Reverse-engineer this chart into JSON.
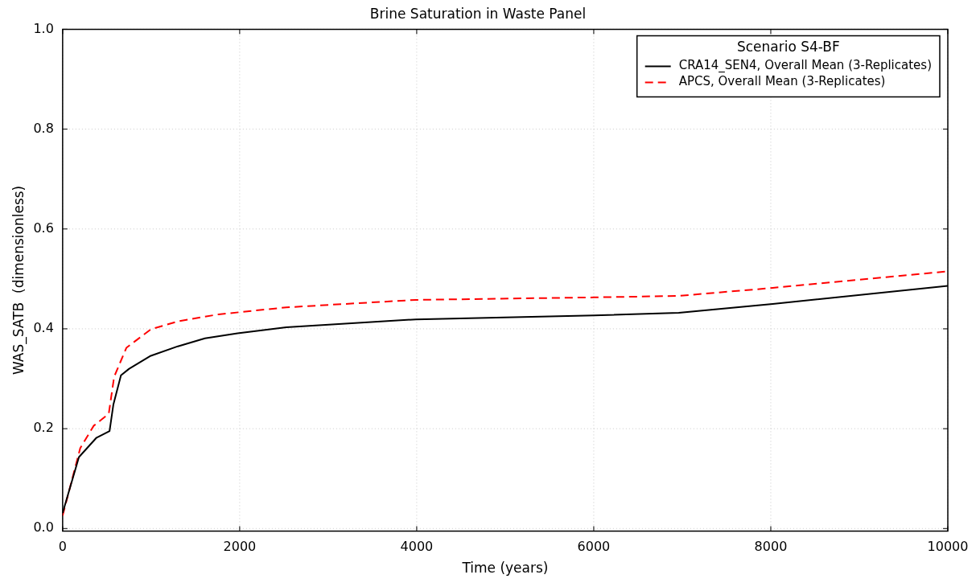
{
  "chart_data": {
    "type": "line",
    "title": "Brine Saturation in Waste Panel",
    "xlabel": "Time (years)",
    "ylabel": "WAS_SATB  (dimensionless)",
    "legend_title": "Scenario S4-BF",
    "legend": "top right",
    "grid": true,
    "xlim": [
      0,
      10000
    ],
    "xticks": [
      0,
      2000,
      4000,
      6000,
      8000,
      10000
    ],
    "ylim": [
      -0.005,
      1.0
    ],
    "yticks": [
      {
        "value": 0,
        "label": "0.0"
      },
      {
        "value": 0.2,
        "label": "0.2"
      },
      {
        "value": 0.4,
        "label": "0.4"
      },
      {
        "value": 0.6,
        "label": "0.6"
      },
      {
        "value": 0.8,
        "label": "0.8"
      },
      {
        "value": 1.0,
        "label": "1.0"
      }
    ],
    "series": [
      {
        "name": "CRA14_SEN4, Overall Mean (3-Replicates)",
        "color": "#000000",
        "line_style": "solid",
        "x": [
          0,
          184,
          383,
          530,
          573,
          659,
          751,
          996,
          1302,
          1608,
          1976,
          2527,
          3989,
          6006,
          6961,
          8022,
          10000
        ],
        "values": [
          0.031,
          0.143,
          0.182,
          0.195,
          0.248,
          0.307,
          0.32,
          0.346,
          0.365,
          0.381,
          0.391,
          0.403,
          0.419,
          0.427,
          0.432,
          0.45,
          0.486
        ]
      },
      {
        "name": "APCS, Overall Mean (3-Replicates)",
        "color": "#ff0000",
        "line_style": "dashed",
        "x": [
          0,
          199,
          352,
          521,
          582,
          720,
          996,
          1302,
          1762,
          2527,
          3989,
          6006,
          6961,
          8022,
          10000
        ],
        "values": [
          0.026,
          0.161,
          0.206,
          0.23,
          0.304,
          0.362,
          0.399,
          0.415,
          0.429,
          0.443,
          0.458,
          0.463,
          0.466,
          0.482,
          0.515
        ]
      }
    ]
  }
}
